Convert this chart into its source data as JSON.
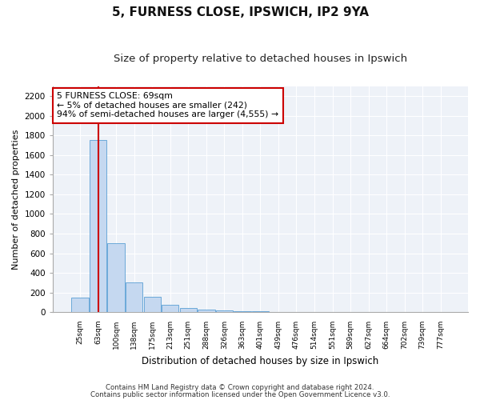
{
  "title1": "5, FURNESS CLOSE, IPSWICH, IP2 9YA",
  "title2": "Size of property relative to detached houses in Ipswich",
  "xlabel": "Distribution of detached houses by size in Ipswich",
  "ylabel": "Number of detached properties",
  "categories": [
    "25sqm",
    "63sqm",
    "100sqm",
    "138sqm",
    "175sqm",
    "213sqm",
    "251sqm",
    "288sqm",
    "326sqm",
    "363sqm",
    "401sqm",
    "439sqm",
    "476sqm",
    "514sqm",
    "551sqm",
    "589sqm",
    "627sqm",
    "664sqm",
    "702sqm",
    "739sqm",
    "777sqm"
  ],
  "values": [
    150,
    1750,
    700,
    300,
    155,
    75,
    40,
    25,
    15,
    8,
    5,
    3,
    2,
    0,
    0,
    0,
    0,
    0,
    0,
    0,
    0
  ],
  "bar_color": "#c5d8f0",
  "bar_edge_color": "#5a9fd4",
  "annotation_text": "5 FURNESS CLOSE: 69sqm\n← 5% of detached houses are smaller (242)\n94% of semi-detached houses are larger (4,555) →",
  "annotation_box_color": "#ffffff",
  "annotation_box_edge": "#cc0000",
  "redline_color": "#cc0000",
  "footer1": "Contains HM Land Registry data © Crown copyright and database right 2024.",
  "footer2": "Contains public sector information licensed under the Open Government Licence v3.0.",
  "ylim": [
    0,
    2300
  ],
  "yticks": [
    0,
    200,
    400,
    600,
    800,
    1000,
    1200,
    1400,
    1600,
    1800,
    2000,
    2200
  ],
  "bg_color": "#eef2f8",
  "title1_fontsize": 11,
  "title2_fontsize": 9.5,
  "grid_color": "#ffffff",
  "redline_bar_index": 1
}
